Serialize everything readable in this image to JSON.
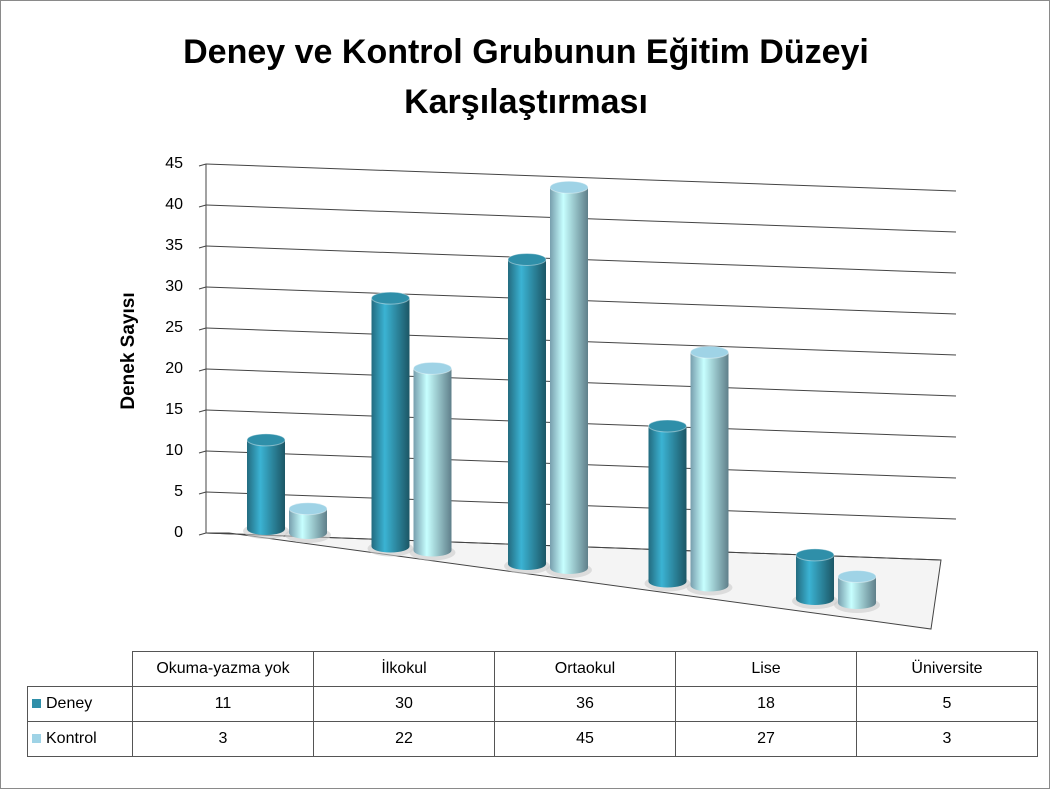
{
  "chart_data": {
    "type": "bar3d",
    "title": "Deney ve Kontrol Grubunun Eğitim Düzeyi Karşılaştırması",
    "ylabel": "Denek  Sayısı",
    "categories": [
      "Okuma-yazma yok",
      "İlkokul",
      "Ortaokul",
      "Lise",
      "Üniversite"
    ],
    "series": [
      {
        "name": "Deney",
        "color": "#2f8fa9",
        "values": [
          11,
          30,
          36,
          18,
          5
        ]
      },
      {
        "name": "Kontrol",
        "color": "#9fd3e6",
        "values": [
          3,
          22,
          45,
          27,
          3
        ]
      }
    ],
    "ylim": [
      0,
      45
    ],
    "yticks": [
      0,
      5,
      10,
      15,
      20,
      25,
      30,
      35,
      40,
      45
    ],
    "grid": true
  }
}
